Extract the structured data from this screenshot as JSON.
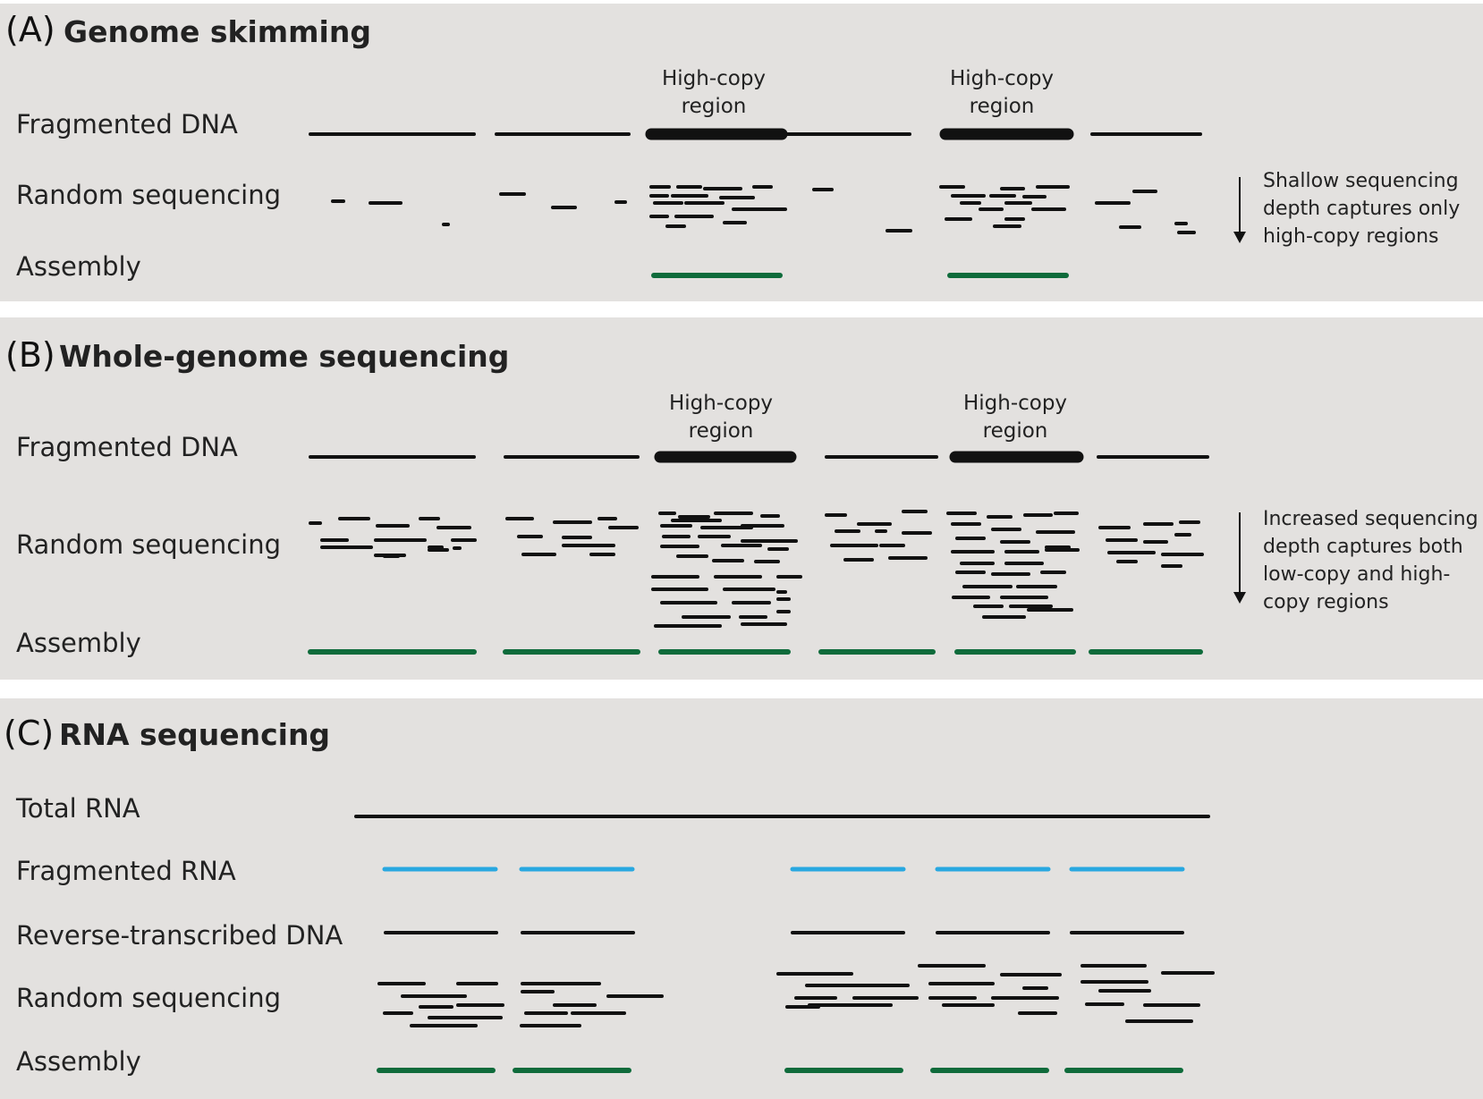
{
  "panels": {
    "a": {
      "letter": "(A)",
      "title": "Genome skimming",
      "rows": [
        "Fragmented DNA",
        "Random sequencing",
        "Assembly"
      ],
      "high_copy_label": [
        "High-copy",
        "region"
      ],
      "note": [
        "Shallow sequencing",
        "depth captures only",
        "high-copy regions"
      ]
    },
    "b": {
      "letter": "(B)",
      "title": "Whole-genome sequencing",
      "rows": [
        "Fragmented DNA",
        "Random sequencing",
        "Assembly"
      ],
      "high_copy_label": [
        "High-copy",
        "region"
      ],
      "note": [
        "Increased sequencing",
        "depth captures both",
        "low-copy and high-",
        "copy regions"
      ]
    },
    "c": {
      "letter": "(C)",
      "title": "RNA sequencing",
      "rows": [
        "Total RNA",
        "Fragmented RNA",
        "Reverse-transcribed DNA",
        "Random sequencing",
        "Assembly"
      ]
    }
  },
  "colors": {
    "panel_background": "#e3e1df",
    "dna": "#111111",
    "assembly": "#0f6b3b",
    "rna": "#29a8e0"
  }
}
